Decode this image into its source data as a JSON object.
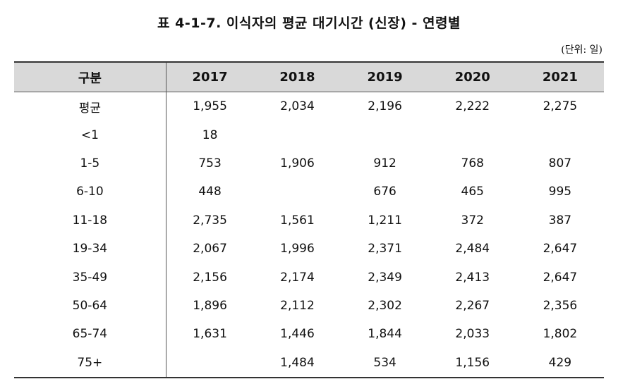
{
  "title": "표 4-1-7. 이식자의 평균 대기시간 (신장) - 연령별",
  "unit_label": "(단위: 일)",
  "table": {
    "headers": [
      "구분",
      "2017",
      "2018",
      "2019",
      "2020",
      "2021"
    ],
    "rows": [
      {
        "label": "평균",
        "values": [
          "1,955",
          "2,034",
          "2,196",
          "2,222",
          "2,275"
        ]
      },
      {
        "label": "<1",
        "values": [
          "18",
          "",
          "",
          "",
          ""
        ]
      },
      {
        "label": "1-5",
        "values": [
          "753",
          "1,906",
          "912",
          "768",
          "807"
        ]
      },
      {
        "label": "6-10",
        "values": [
          "448",
          "",
          "676",
          "465",
          "995"
        ]
      },
      {
        "label": "11-18",
        "values": [
          "2,735",
          "1,561",
          "1,211",
          "372",
          "387"
        ]
      },
      {
        "label": "19-34",
        "values": [
          "2,067",
          "1,996",
          "2,371",
          "2,484",
          "2,647"
        ]
      },
      {
        "label": "35-49",
        "values": [
          "2,156",
          "2,174",
          "2,349",
          "2,413",
          "2,647"
        ]
      },
      {
        "label": "50-64",
        "values": [
          "1,896",
          "2,112",
          "2,302",
          "2,267",
          "2,356"
        ]
      },
      {
        "label": "65-74",
        "values": [
          "1,631",
          "1,446",
          "1,844",
          "2,033",
          "1,802"
        ]
      },
      {
        "label": "75+",
        "values": [
          "",
          "1,484",
          "534",
          "1,156",
          "429"
        ]
      }
    ]
  }
}
